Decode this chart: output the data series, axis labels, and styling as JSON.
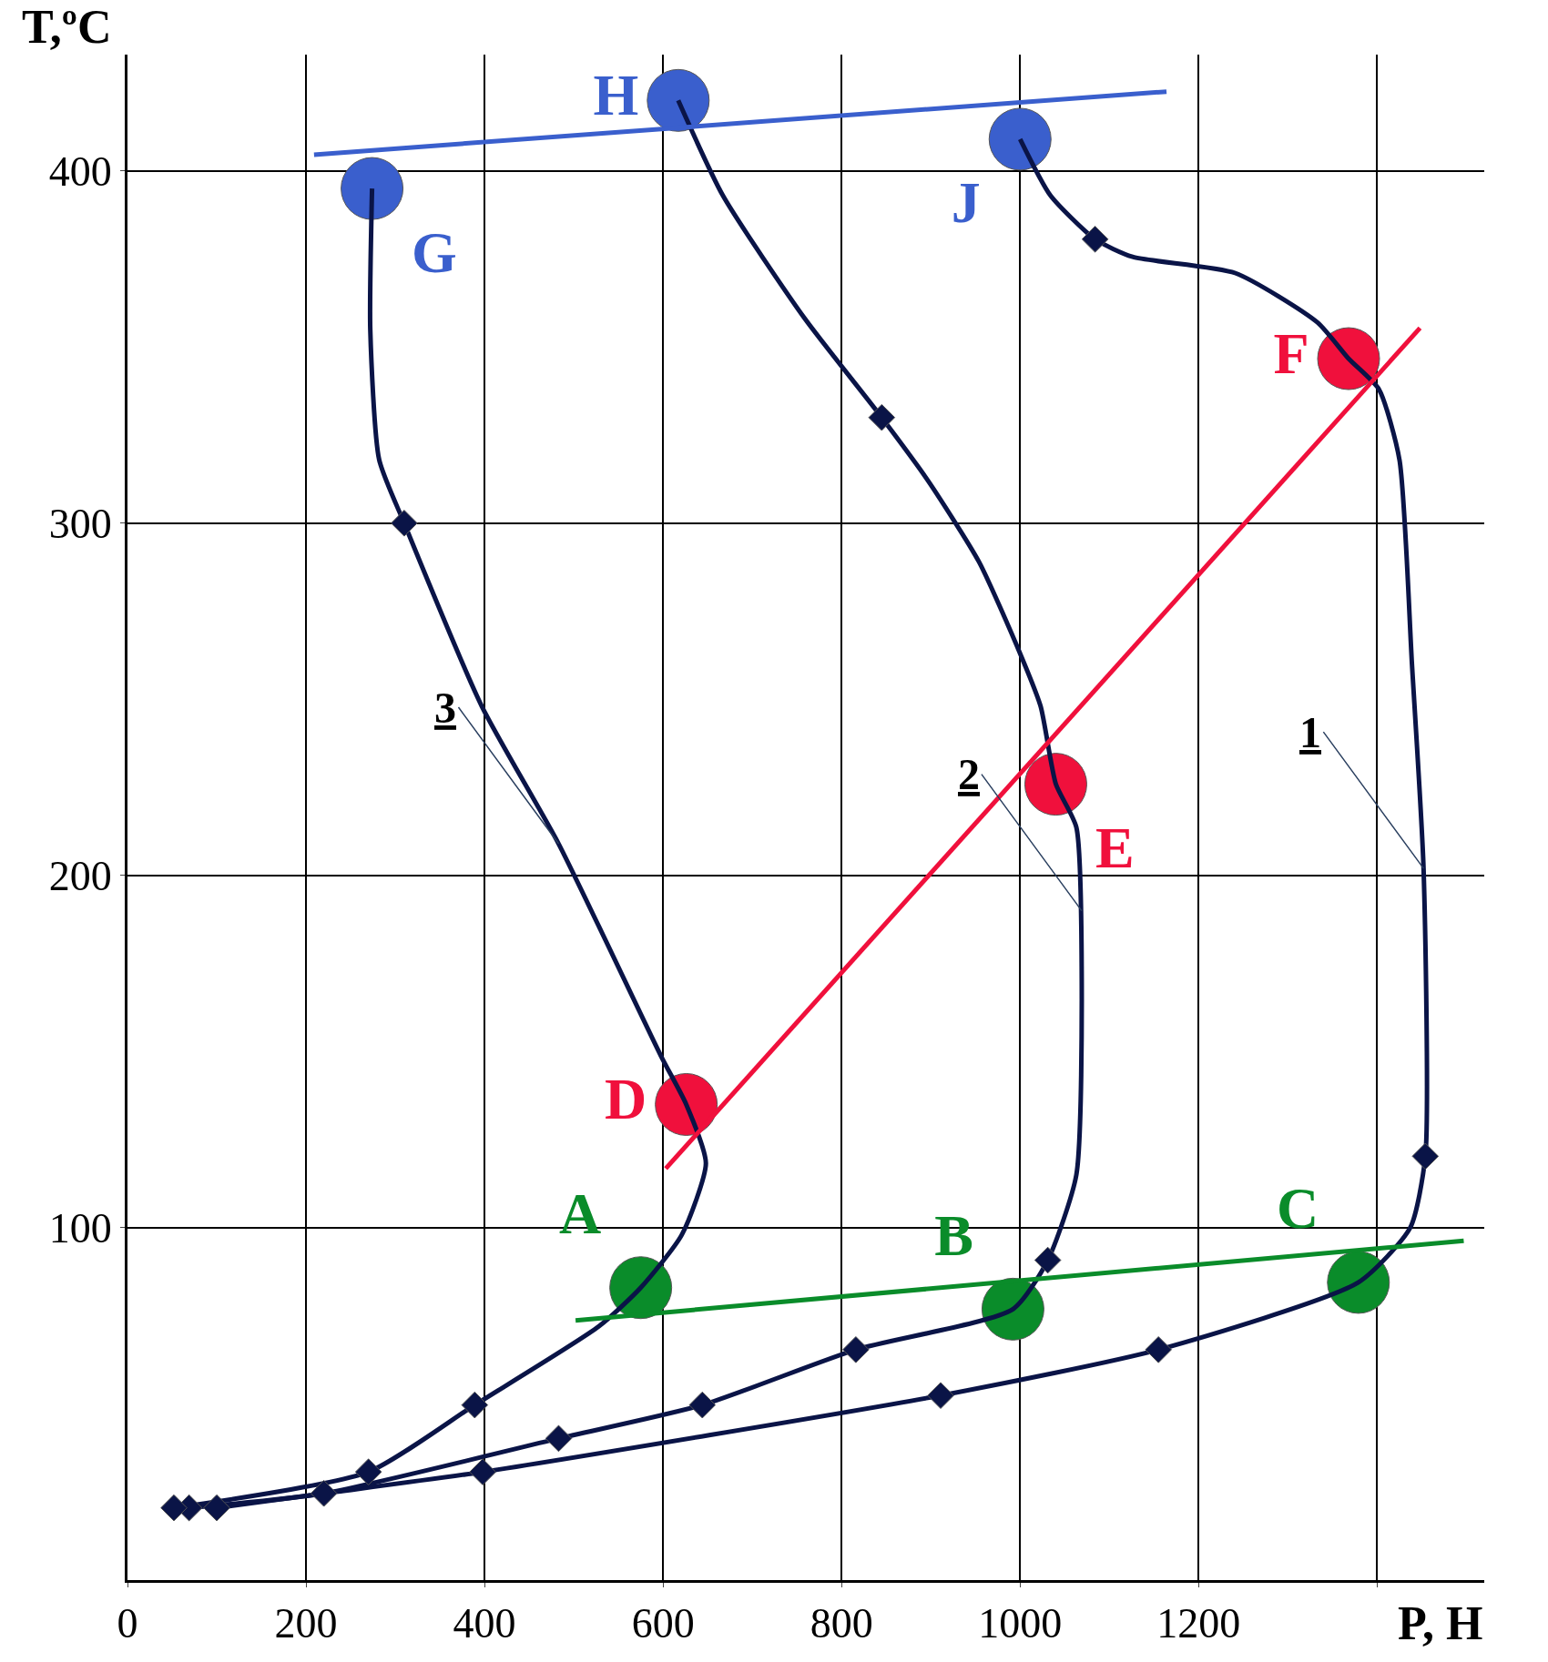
{
  "chart_data": {
    "type": "line",
    "xlabel": "P, Н",
    "ylabel": "T,ºC",
    "xlim": [
      0,
      1520
    ],
    "ylim": [
      0,
      433
    ],
    "xticks": [
      0,
      200,
      400,
      600,
      800,
      1000,
      1200,
      {
        "value": 1400,
        "label": null
      }
    ],
    "yticks": [
      100,
      200,
      300,
      400
    ],
    "grid": true,
    "series": [
      {
        "marker": "none",
        "color": "#0a1447",
        "x": [
          100,
          220,
          398,
          911,
          1155,
          1379,
          1437,
          1454,
          1452,
          1439,
          1425,
          1402,
          1368,
          1333,
          1241,
          1126,
          1084,
          1034,
          1000
        ],
        "values": [
          20.5,
          24.6,
          30.7,
          52.4,
          65.4,
          84.5,
          100,
          120.3,
          202,
          260,
          318,
          338,
          346.7,
          357,
          371,
          375.6,
          380.6,
          393,
          409
        ]
      },
      {
        "marker": "none",
        "color": "#0a1447",
        "x": [
          69,
          220,
          483,
          644,
          816,
          992,
          1031,
          1063,
          1069,
          1063,
          1040,
          1023,
          1000,
          954,
          897,
          845,
          759,
          667,
          617
        ],
        "values": [
          20.5,
          24.6,
          40.2,
          49.7,
          65.4,
          76.9,
          90.8,
          115,
          173,
          213.7,
          226,
          248,
          263,
          289,
          312,
          330,
          358,
          393,
          420
        ]
      },
      {
        "marker": "none",
        "color": "#0a1447",
        "x": [
          52,
          270,
          389,
          528,
          575,
          621,
          648,
          626,
          598,
          483,
          397,
          310,
          282,
          272,
          274
        ],
        "values": [
          20.5,
          30.7,
          49.7,
          72,
          83,
          98,
          118.3,
          135,
          148.6,
          209,
          248,
          300,
          318,
          355,
          395
        ]
      },
      {
        "type": "scatter",
        "marker": "diamond",
        "color": "#0a1447",
        "x": [
          100,
          69,
          52,
          220,
          270,
          398,
          389,
          483,
          644,
          816,
          911,
          1155,
          1031,
          1454,
          310,
          845,
          1084
        ],
        "values": [
          20.5,
          20.5,
          20.5,
          24.6,
          30.7,
          30.7,
          49.7,
          40.2,
          49.7,
          65.4,
          52.4,
          65.4,
          90.8,
          120.3,
          300,
          330,
          380.6
        ]
      },
      {
        "marker": "none",
        "color": "#0a8c2a",
        "x": [
          502,
          1497
        ],
        "values": [
          73.7,
          96.3
        ]
      },
      {
        "marker": "none",
        "color": "#f0103c",
        "x": [
          603,
          1448
        ],
        "values": [
          116.8,
          355.4
        ]
      },
      {
        "marker": "none",
        "color": "#3a5fcd",
        "x": [
          209,
          1164
        ],
        "values": [
          404.6,
          422.5
        ]
      },
      {
        "type": "scatter",
        "marker": "circle",
        "color": "#0a8c2a",
        "x": [
          575,
          992,
          1379
        ],
        "values": [
          83,
          76.9,
          84.5
        ],
        "value_labels": [
          "A",
          "B",
          "C"
        ]
      },
      {
        "type": "scatter",
        "marker": "circle",
        "color": "#f0103c",
        "x": [
          626,
          1040,
          1368
        ],
        "values": [
          135,
          225.9,
          346.7
        ],
        "value_labels": [
          "D",
          "E",
          "F"
        ]
      },
      {
        "type": "scatter",
        "marker": "circle",
        "color": "#3a5fcd",
        "x": [
          274,
          617,
          1000
        ],
        "values": [
          395,
          420,
          409
        ],
        "value_labels": [
          "G",
          "H",
          "J"
        ]
      }
    ],
    "annotations": [
      {
        "text": "1",
        "x": 1452,
        "y": 202
      },
      {
        "text": "2",
        "x": 1069,
        "y": 190
      },
      {
        "text": "3",
        "x": 483,
        "y": 209
      }
    ]
  }
}
